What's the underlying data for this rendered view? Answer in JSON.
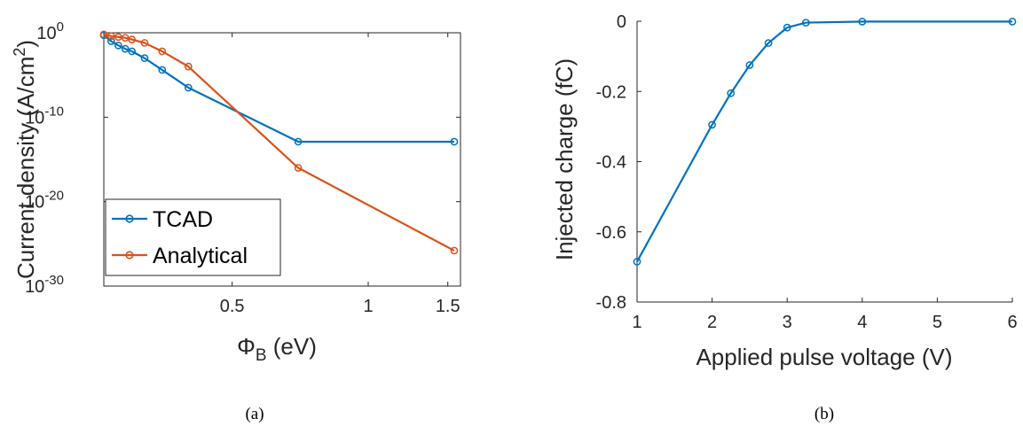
{
  "colors": {
    "tcad": "#0072BD",
    "analytical": "#D95319",
    "axis": "#262626"
  },
  "chart_data": [
    {
      "type": "line",
      "caption": "(a)",
      "x_scale": "log",
      "y_scale": "log",
      "xlabel_symbol": "Φ",
      "xlabel_sub": "B",
      "xlabel_unit": " (eV)",
      "ylabel_main": "Current density (A/cm",
      "ylabel_sup": "2",
      "ylabel_close": ")",
      "xlim": [
        0.26,
        1.6
      ],
      "ylim_exponent": [
        -30,
        0
      ],
      "x_ticks": [
        {
          "value": 0.5,
          "label": "0.5"
        },
        {
          "value": 1,
          "label": "1"
        },
        {
          "value": 1.5,
          "label": "1.5"
        }
      ],
      "y_ticks": [
        {
          "exponent": 0,
          "base": "10",
          "sup": "0"
        },
        {
          "exponent": -10,
          "base": "10",
          "sup": "-10"
        },
        {
          "exponent": -20,
          "base": "10",
          "sup": "-20"
        },
        {
          "exponent": -30,
          "base": "10",
          "sup": "-30"
        }
      ],
      "legend_position": "bottom-left",
      "series": [
        {
          "name": "TCAD",
          "color_key": "tcad",
          "x": [
            0.26,
            0.27,
            0.28,
            0.29,
            0.3,
            0.32,
            0.35,
            0.4,
            0.7,
            1.55
          ],
          "y_exponent": [
            -0.3,
            -1.0,
            -1.5,
            -1.9,
            -2.2,
            -3.0,
            -4.4,
            -6.5,
            -12.9,
            -12.9
          ]
        },
        {
          "name": "Analytical",
          "color_key": "analytical",
          "x": [
            0.26,
            0.27,
            0.28,
            0.29,
            0.3,
            0.32,
            0.35,
            0.4,
            0.7,
            1.55
          ],
          "y_exponent": [
            -0.2,
            -0.4,
            -0.5,
            -0.6,
            -0.8,
            -1.2,
            -2.2,
            -4.0,
            -16.0,
            -25.8
          ]
        }
      ]
    },
    {
      "type": "line",
      "caption": "(b)",
      "xlabel": "Applied pulse voltage (V)",
      "ylabel": "Injected charge (fC)",
      "xlim": [
        1,
        6
      ],
      "ylim": [
        -0.8,
        0
      ],
      "x_ticks": [
        {
          "value": 1,
          "label": "1"
        },
        {
          "value": 2,
          "label": "2"
        },
        {
          "value": 3,
          "label": "3"
        },
        {
          "value": 4,
          "label": "4"
        },
        {
          "value": 5,
          "label": "5"
        },
        {
          "value": 6,
          "label": "6"
        }
      ],
      "y_ticks": [
        {
          "value": 0,
          "label": "0"
        },
        {
          "value": -0.2,
          "label": "-0.2"
        },
        {
          "value": -0.4,
          "label": "-0.4"
        },
        {
          "value": -0.6,
          "label": "-0.6"
        },
        {
          "value": -0.8,
          "label": "-0.8"
        }
      ],
      "series": [
        {
          "color_key": "tcad",
          "x": [
            1,
            2,
            2.25,
            2.5,
            2.75,
            3,
            3.25,
            4,
            6
          ],
          "y": [
            -0.685,
            -0.295,
            -0.205,
            -0.125,
            -0.062,
            -0.018,
            -0.004,
            -0.001,
            -0.001
          ]
        }
      ]
    }
  ]
}
